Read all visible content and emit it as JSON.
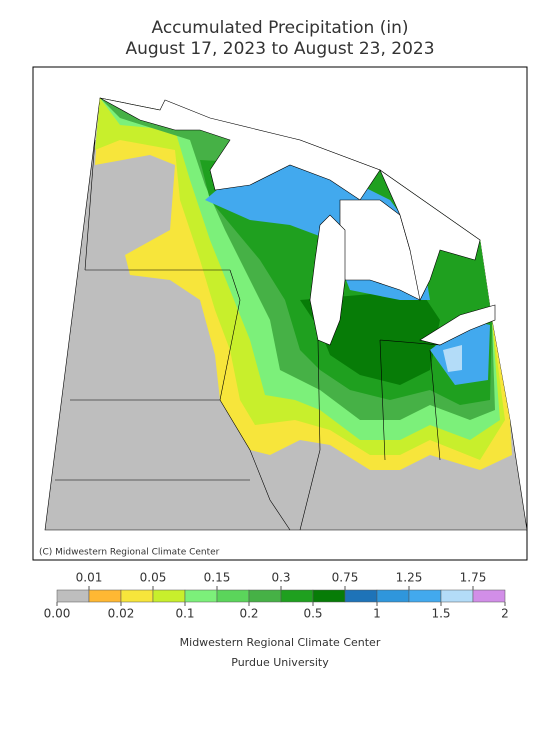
{
  "header": {
    "title": "Accumulated Precipitation (in)",
    "subtitle": "August 17, 2023 to August 23, 2023"
  },
  "map": {
    "credit": "(C) Midwestern Regional Climate Center"
  },
  "legend": {
    "boundaries": [
      {
        "value": 0,
        "label": "0.00"
      },
      0.01,
      0.02,
      0.05,
      0.1,
      0.15,
      0.2,
      0.3,
      0.5,
      0.75,
      1,
      1.25,
      1.5,
      1.75,
      2
    ],
    "colors": [
      "#bebebe",
      "#ffb833",
      "#f7e53b",
      "#c8ef2c",
      "#7cf07a",
      "#5bd55b",
      "#46b146",
      "#1fa01f",
      "#077c07",
      "#1e73b8",
      "#2f96dc",
      "#42a9ee",
      "#b3dcf8",
      "#d28ee8"
    ]
  },
  "footer": {
    "line1": "Midwestern Regional Climate Center",
    "line2": "Purdue University"
  }
}
